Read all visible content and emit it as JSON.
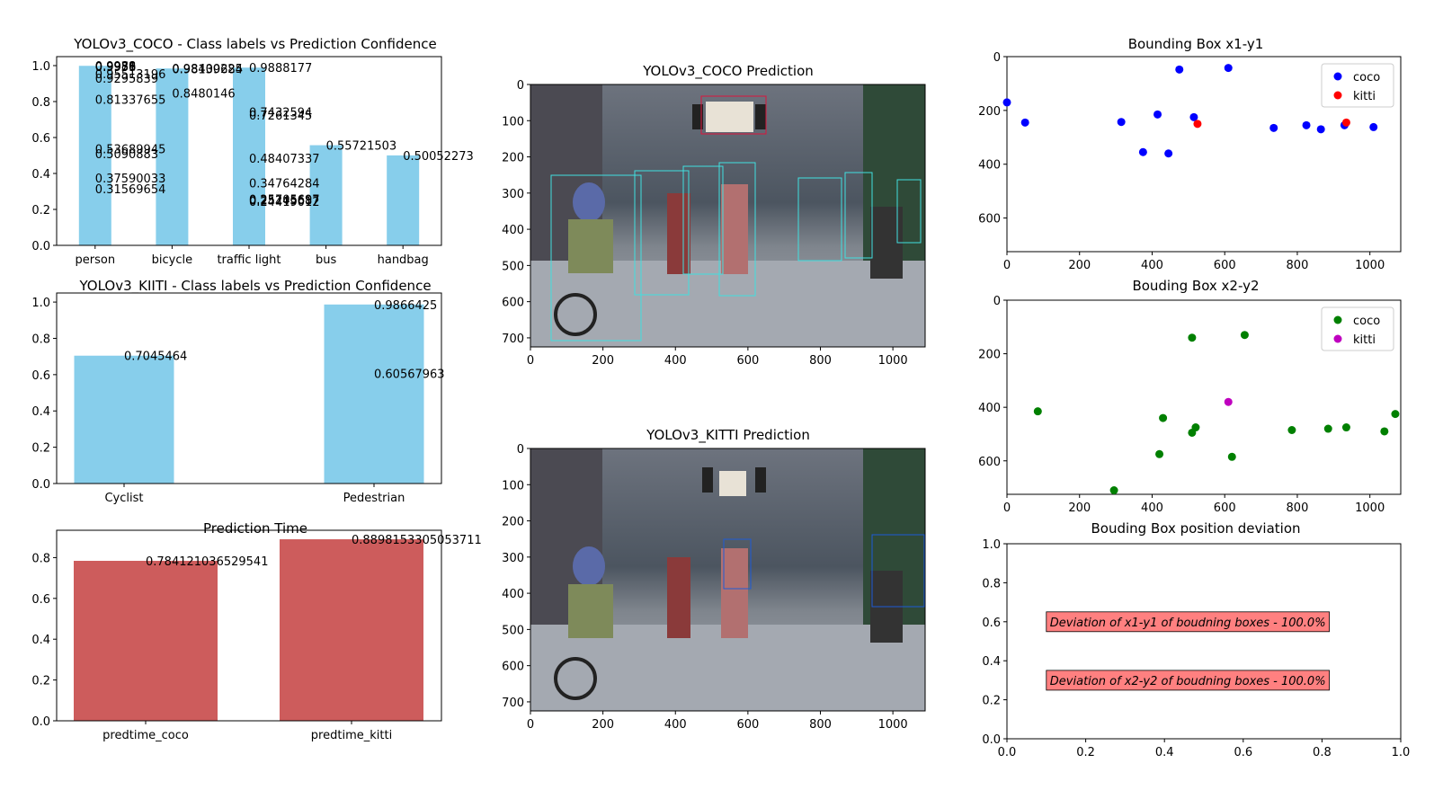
{
  "colors": {
    "bar_conf": "#87ceeb",
    "bar_time": "#cd5c5c",
    "coco_x1y1": "#0000ff",
    "kitti_x1y1": "#ff0000",
    "coco_x2y2": "#008000",
    "kitti_x2y2": "#bf00bf",
    "deviation_box": "#ff8080"
  },
  "chart_data": [
    {
      "id": "coco_conf",
      "type": "bar",
      "title": "YOLOv3_COCO - Class labels vs Prediction Confidence",
      "categories": [
        "person",
        "bicycle",
        "traffic light",
        "bus",
        "handbag"
      ],
      "ylim": [
        0,
        1.05
      ],
      "yticks": [
        "0.0",
        "0.2",
        "0.4",
        "0.6",
        "0.8",
        "1.0"
      ],
      "labels": [
        {
          "cat": 0,
          "value": 0.9988,
          "text": "0.9988"
        },
        {
          "cat": 0,
          "value": 0.9971,
          "text": "0.9971"
        },
        {
          "cat": 0,
          "value": 0.9956,
          "text": "0.9956"
        },
        {
          "cat": 0,
          "value": 0.9939,
          "text": "0.9939"
        },
        {
          "cat": 0,
          "value": 0.95513196,
          "text": "0.95513196"
        },
        {
          "cat": 0,
          "value": 0.9295839,
          "text": "0.9295839"
        },
        {
          "cat": 0,
          "value": 0.81337655,
          "text": "0.81337655"
        },
        {
          "cat": 0,
          "value": 0.53689945,
          "text": "0.53689945"
        },
        {
          "cat": 0,
          "value": 0.5090883,
          "text": "0.5090883"
        },
        {
          "cat": 0,
          "value": 0.37590033,
          "text": "0.37590033"
        },
        {
          "cat": 0,
          "value": 0.31569654,
          "text": "0.31569654"
        },
        {
          "cat": 1,
          "value": 0.98139684,
          "text": "0.98139684"
        },
        {
          "cat": 1,
          "value": 0.98400225,
          "text": "0.98400225"
        },
        {
          "cat": 1,
          "value": 0.8480146,
          "text": "0.8480146"
        },
        {
          "cat": 2,
          "value": 0.9888177,
          "text": "0.9888177"
        },
        {
          "cat": 2,
          "value": 0.7432594,
          "text": "0.7432594"
        },
        {
          "cat": 2,
          "value": 0.7261345,
          "text": "0.7261345"
        },
        {
          "cat": 2,
          "value": 0.48407337,
          "text": "0.48407337"
        },
        {
          "cat": 2,
          "value": 0.34764284,
          "text": "0.34764284"
        },
        {
          "cat": 2,
          "value": 0.25705697,
          "text": "0.25705697"
        },
        {
          "cat": 2,
          "value": 0.25245687,
          "text": "0.25245687"
        },
        {
          "cat": 2,
          "value": 0.24419012,
          "text": "0.24419012"
        },
        {
          "cat": 3,
          "value": 0.55721503,
          "text": "0.55721503"
        },
        {
          "cat": 4,
          "value": 0.50052273,
          "text": "0.50052273"
        }
      ]
    },
    {
      "id": "kitti_conf",
      "type": "bar",
      "title": "YOLOv3_KIITI - Class labels vs Prediction Confidence",
      "categories": [
        "Cyclist",
        "Pedestrian"
      ],
      "ylim": [
        0,
        1.05
      ],
      "yticks": [
        "0.0",
        "0.2",
        "0.4",
        "0.6",
        "0.8",
        "1.0"
      ],
      "labels": [
        {
          "cat": 0,
          "value": 0.7045464,
          "text": "0.7045464"
        },
        {
          "cat": 1,
          "value": 0.9866425,
          "text": "0.9866425"
        },
        {
          "cat": 1,
          "value": 0.60567963,
          "text": "0.60567963"
        }
      ]
    },
    {
      "id": "pred_time",
      "type": "bar",
      "title": "Prediction Time",
      "categories": [
        "predtime_coco",
        "predtime_kitti"
      ],
      "values": [
        0.784121036529541,
        0.8898153305053711
      ],
      "value_labels": [
        "0.784121036529541",
        "0.8898153305053711"
      ],
      "ylim": [
        0,
        0.934
      ],
      "yticks": [
        "0.0",
        "0.2",
        "0.4",
        "0.6",
        "0.8"
      ]
    },
    {
      "id": "x1y1",
      "type": "scatter",
      "title": "Bounding Box x1-y1",
      "xlim": [
        0,
        1085
      ],
      "ylim": [
        725,
        0
      ],
      "xticks": [
        0,
        200,
        400,
        600,
        800,
        1000
      ],
      "yticks": [
        0,
        200,
        400,
        600
      ],
      "series": [
        {
          "name": "coco",
          "color_key": "coco_x1y1",
          "x": [
            0,
            50,
            315,
            375,
            415,
            445,
            475,
            515,
            610,
            735,
            825,
            865,
            930,
            1010
          ],
          "y": [
            170,
            245,
            243,
            355,
            215,
            360,
            48,
            225,
            42,
            265,
            255,
            270,
            255,
            262
          ]
        },
        {
          "name": "kitti",
          "color_key": "kitti_x1y1",
          "x": [
            525,
            935
          ],
          "y": [
            250,
            245
          ]
        }
      ]
    },
    {
      "id": "x2y2",
      "type": "scatter",
      "title": "Bouding Box x2-y2",
      "xlim": [
        0,
        1085
      ],
      "ylim": [
        725,
        0
      ],
      "xticks": [
        0,
        200,
        400,
        600,
        800,
        1000
      ],
      "yticks": [
        0,
        200,
        400,
        600
      ],
      "series": [
        {
          "name": "coco",
          "color_key": "coco_x2y2",
          "x": [
            85,
            295,
            420,
            430,
            510,
            510,
            520,
            620,
            655,
            785,
            885,
            935,
            1040,
            1070
          ],
          "y": [
            415,
            710,
            575,
            440,
            140,
            495,
            475,
            585,
            130,
            485,
            480,
            475,
            490,
            425
          ]
        },
        {
          "name": "kitti",
          "color_key": "kitti_x2y2",
          "x": [
            610
          ],
          "y": [
            380
          ]
        }
      ]
    },
    {
      "id": "deviation",
      "type": "scatter",
      "title": "Bouding Box position deviation",
      "xlim": [
        0,
        1
      ],
      "ylim": [
        0,
        1
      ],
      "xticks": [
        "0.0",
        "0.2",
        "0.4",
        "0.6",
        "0.8",
        "1.0"
      ],
      "yticks": [
        "0.0",
        "0.2",
        "0.4",
        "0.6",
        "0.8",
        "1.0"
      ],
      "annotations": [
        {
          "x": 0.1,
          "y": 0.6,
          "text": "Deviation of x1-y1 of boudning boxes - 100.0%"
        },
        {
          "x": 0.1,
          "y": 0.3,
          "text": "Deviation of x2-y2 of boudning boxes - 100.0%"
        }
      ]
    }
  ],
  "images": [
    {
      "id": "coco_img",
      "title": "YOLOv3_COCO Prediction",
      "xticks": [
        0,
        200,
        400,
        600,
        800,
        1000
      ],
      "yticks": [
        0,
        100,
        200,
        300,
        400,
        500,
        600,
        700
      ]
    },
    {
      "id": "kitti_img",
      "title": "YOLOv3_KITTI Prediction",
      "xticks": [
        0,
        200,
        400,
        600,
        800,
        1000
      ],
      "yticks": [
        0,
        100,
        200,
        300,
        400,
        500,
        600,
        700
      ]
    }
  ]
}
